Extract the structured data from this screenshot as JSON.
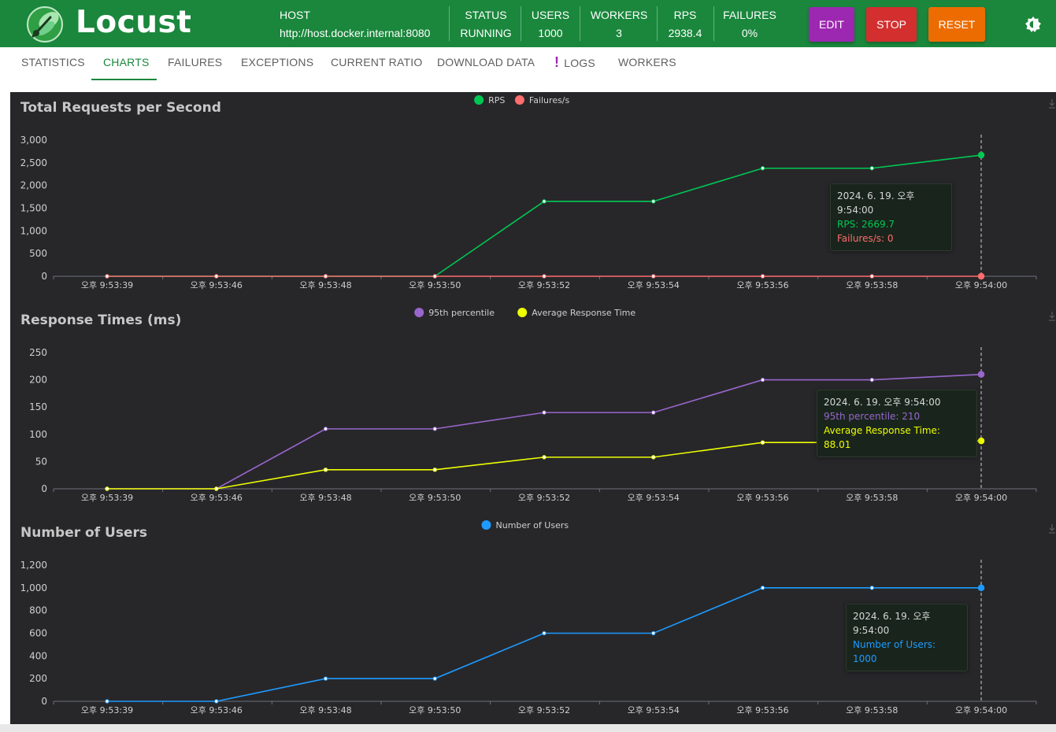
{
  "header": {
    "brand": "Locust",
    "host_label": "HOST",
    "host_value": "http://host.docker.internal:8080",
    "stats": [
      {
        "label": "STATUS",
        "value": "RUNNING"
      },
      {
        "label": "USERS",
        "value": "1000"
      },
      {
        "label": "WORKERS",
        "value": "3"
      },
      {
        "label": "RPS",
        "value": "2938.4"
      },
      {
        "label": "FAILURES",
        "value": "0%"
      }
    ],
    "edit_label": "EDIT",
    "stop_label": "STOP",
    "reset_label": "RESET",
    "colors": {
      "header": "#1a873c",
      "edit": "#9c27b0",
      "stop": "#d32f2f",
      "reset": "#ed6c02"
    }
  },
  "tabs": [
    {
      "label": "STATISTICS",
      "active": false
    },
    {
      "label": "CHARTS",
      "active": true
    },
    {
      "label": "FAILURES",
      "active": false
    },
    {
      "label": "EXCEPTIONS",
      "active": false
    },
    {
      "label": "CURRENT RATIO",
      "active": false
    },
    {
      "label": "DOWNLOAD DATA",
      "active": false
    },
    {
      "label": "LOGS",
      "active": false,
      "icon": "exclamation-icon"
    },
    {
      "label": "WORKERS",
      "active": false
    }
  ],
  "chart_data": [
    {
      "type": "line",
      "title": "Total Requests per Second",
      "x": [
        "오후 9:53:39",
        "오후 9:53:46",
        "오후 9:53:48",
        "오후 9:53:50",
        "오후 9:53:52",
        "오후 9:53:54",
        "오후 9:53:56",
        "오후 9:53:58",
        "오후 9:54:00"
      ],
      "ylim": [
        0,
        3000
      ],
      "yticks": [
        0,
        500,
        1000,
        1500,
        2000,
        2500,
        3000
      ],
      "ytick_labels": [
        "0",
        "500",
        "1,000",
        "1,500",
        "2,000",
        "2,500",
        "3,000"
      ],
      "series": [
        {
          "name": "RPS",
          "color": "#00c853",
          "values": [
            0,
            0,
            0,
            0,
            1650,
            1650,
            2380,
            2380,
            2669.7
          ]
        },
        {
          "name": "Failures/s",
          "color": "#ff6d6d",
          "values": [
            0,
            0,
            0,
            0,
            0,
            0,
            0,
            0,
            0
          ]
        }
      ],
      "legend_position": "top-center",
      "tooltip": {
        "date": "2024. 6. 19. 오후 9:54:00",
        "rows": [
          "RPS: 2669.7",
          "Failures/s: 0"
        ]
      }
    },
    {
      "type": "line",
      "title": "Response Times (ms)",
      "x": [
        "오후 9:53:39",
        "오후 9:53:46",
        "오후 9:53:48",
        "오후 9:53:50",
        "오후 9:53:52",
        "오후 9:53:54",
        "오후 9:53:56",
        "오후 9:53:58",
        "오후 9:54:00"
      ],
      "ylim": [
        0,
        250
      ],
      "yticks": [
        0,
        50,
        100,
        150,
        200,
        250
      ],
      "ytick_labels": [
        "0",
        "50",
        "100",
        "150",
        "200",
        "250"
      ],
      "series": [
        {
          "name": "95th percentile",
          "color": "#9966cc",
          "values": [
            0,
            0,
            110,
            110,
            140,
            140,
            200,
            200,
            210
          ]
        },
        {
          "name": "Average Response Time",
          "color": "#eeff00",
          "values": [
            0,
            0,
            35,
            35,
            58,
            58,
            85,
            85,
            88.01
          ]
        }
      ],
      "legend_position": "top-center",
      "tooltip": {
        "date": "2024. 6. 19. 오후 9:54:00",
        "rows": [
          "95th percentile: 210",
          "Average Response Time: 88.01"
        ]
      }
    },
    {
      "type": "line",
      "title": "Number of Users",
      "x": [
        "오후 9:53:39",
        "오후 9:53:46",
        "오후 9:53:48",
        "오후 9:53:50",
        "오후 9:53:52",
        "오후 9:53:54",
        "오후 9:53:56",
        "오후 9:53:58",
        "오후 9:54:00"
      ],
      "ylim": [
        0,
        1200
      ],
      "yticks": [
        0,
        200,
        400,
        600,
        800,
        1000,
        1200
      ],
      "ytick_labels": [
        "0",
        "200",
        "400",
        "600",
        "800",
        "1,000",
        "1,200"
      ],
      "series": [
        {
          "name": "Number of Users",
          "color": "#1e9bff",
          "values": [
            0,
            0,
            200,
            200,
            600,
            600,
            1000,
            1000,
            1000
          ]
        }
      ],
      "legend_position": "top-center",
      "tooltip": {
        "date": "2024. 6. 19. 오후 9:54:00",
        "rows": [
          "Number of Users: 1000"
        ]
      }
    }
  ]
}
